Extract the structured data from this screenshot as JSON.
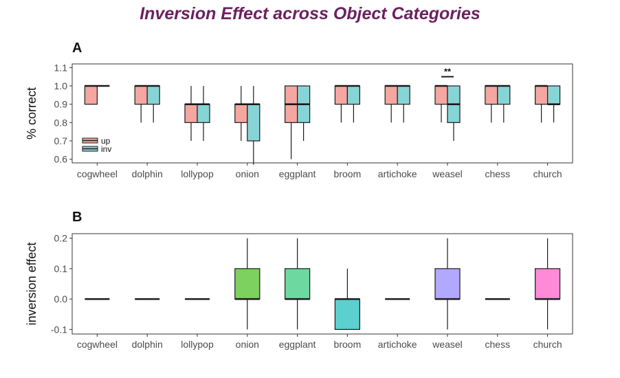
{
  "title": "Inversion Effect across Object Categories",
  "chart_data": [
    {
      "panel": "A",
      "type": "box",
      "ylabel": "% correct",
      "ylim": [
        0.58,
        1.12
      ],
      "yticks": [
        "0.6",
        "0.7",
        "0.8",
        "0.9",
        "1.0",
        "1.1"
      ],
      "categories": [
        "cogwheel",
        "dolphin",
        "lollypop",
        "onion",
        "eggplant",
        "broom",
        "artichoke",
        "weasel",
        "chess",
        "church"
      ],
      "legend": {
        "position": "bottom-left",
        "entries": [
          "up",
          "inv"
        ]
      },
      "annotation": {
        "category": "weasel",
        "text": "**"
      },
      "series": [
        {
          "name": "up",
          "color": "#f4a6a0",
          "boxes": [
            {
              "whislo": 0.9,
              "q1": 0.9,
              "med": 1.0,
              "q3": 1.0,
              "whishi": 1.0
            },
            {
              "whislo": 0.8,
              "q1": 0.9,
              "med": 1.0,
              "q3": 1.0,
              "whishi": 1.0
            },
            {
              "whislo": 0.7,
              "q1": 0.8,
              "med": 0.9,
              "q3": 0.9,
              "whishi": 1.0
            },
            {
              "whislo": 0.7,
              "q1": 0.8,
              "med": 0.9,
              "q3": 0.9,
              "whishi": 1.0
            },
            {
              "whislo": 0.6,
              "q1": 0.8,
              "med": 0.9,
              "q3": 1.0,
              "whishi": 1.0
            },
            {
              "whislo": 0.8,
              "q1": 0.9,
              "med": 1.0,
              "q3": 1.0,
              "whishi": 1.0
            },
            {
              "whislo": 0.8,
              "q1": 0.9,
              "med": 1.0,
              "q3": 1.0,
              "whishi": 1.0
            },
            {
              "whislo": 0.8,
              "q1": 0.9,
              "med": 1.0,
              "q3": 1.0,
              "whishi": 1.0
            },
            {
              "whislo": 0.8,
              "q1": 0.9,
              "med": 1.0,
              "q3": 1.0,
              "whishi": 1.0
            },
            {
              "whislo": 0.8,
              "q1": 0.9,
              "med": 1.0,
              "q3": 1.0,
              "whishi": 1.0
            }
          ]
        },
        {
          "name": "inv",
          "color": "#86d4d6",
          "boxes": [
            {
              "whislo": 1.0,
              "q1": 1.0,
              "med": 1.0,
              "q3": 1.0,
              "whishi": 1.0
            },
            {
              "whislo": 0.8,
              "q1": 0.9,
              "med": 1.0,
              "q3": 1.0,
              "whishi": 1.0
            },
            {
              "whislo": 0.7,
              "q1": 0.8,
              "med": 0.9,
              "q3": 0.9,
              "whishi": 1.0
            },
            {
              "whislo": 0.57,
              "q1": 0.7,
              "med": 0.9,
              "q3": 0.9,
              "whishi": 1.0
            },
            {
              "whislo": 0.7,
              "q1": 0.8,
              "med": 0.9,
              "q3": 1.0,
              "whishi": 1.0
            },
            {
              "whislo": 0.8,
              "q1": 0.9,
              "med": 1.0,
              "q3": 1.0,
              "whishi": 1.0
            },
            {
              "whislo": 0.8,
              "q1": 0.9,
              "med": 1.0,
              "q3": 1.0,
              "whishi": 1.0
            },
            {
              "whislo": 0.7,
              "q1": 0.8,
              "med": 0.9,
              "q3": 1.0,
              "whishi": 1.0
            },
            {
              "whislo": 0.8,
              "q1": 0.9,
              "med": 1.0,
              "q3": 1.0,
              "whishi": 1.0
            },
            {
              "whislo": 0.8,
              "q1": 0.9,
              "med": 0.9,
              "q3": 1.0,
              "whishi": 1.0
            }
          ]
        }
      ]
    },
    {
      "panel": "B",
      "type": "box",
      "ylabel": "inversion effect",
      "ylim": [
        -0.115,
        0.215
      ],
      "yticks": [
        "-0.1",
        "0.0",
        "0.1",
        "0.2"
      ],
      "categories": [
        "cogwheel",
        "dolphin",
        "lollypop",
        "onion",
        "eggplant",
        "broom",
        "artichoke",
        "weasel",
        "chess",
        "church"
      ],
      "colors": [
        "#f4a6a0",
        "#f4a6a0",
        "#f4a6a0",
        "#7dd15e",
        "#6dd9a0",
        "#5ccfcf",
        "#5ccfcf",
        "#b3a8ff",
        "#f08ecf",
        "#ff8ad8"
      ],
      "boxes": [
        {
          "whislo": 0.0,
          "q1": 0.0,
          "med": 0.0,
          "q3": 0.0,
          "whishi": 0.0
        },
        {
          "whislo": 0.0,
          "q1": 0.0,
          "med": 0.0,
          "q3": 0.0,
          "whishi": 0.0
        },
        {
          "whislo": 0.0,
          "q1": 0.0,
          "med": 0.0,
          "q3": 0.0,
          "whishi": 0.0
        },
        {
          "whislo": -0.1,
          "q1": 0.0,
          "med": 0.0,
          "q3": 0.1,
          "whishi": 0.2
        },
        {
          "whislo": -0.1,
          "q1": 0.0,
          "med": 0.0,
          "q3": 0.1,
          "whishi": 0.2
        },
        {
          "whislo": -0.1,
          "q1": -0.1,
          "med": 0.0,
          "q3": 0.0,
          "whishi": 0.1
        },
        {
          "whislo": 0.0,
          "q1": 0.0,
          "med": 0.0,
          "q3": 0.0,
          "whishi": 0.0
        },
        {
          "whislo": -0.1,
          "q1": 0.0,
          "med": 0.0,
          "q3": 0.1,
          "whishi": 0.2
        },
        {
          "whislo": 0.0,
          "q1": 0.0,
          "med": 0.0,
          "q3": 0.0,
          "whishi": 0.0
        },
        {
          "whislo": -0.1,
          "q1": 0.0,
          "med": 0.0,
          "q3": 0.1,
          "whishi": 0.2
        }
      ]
    }
  ]
}
